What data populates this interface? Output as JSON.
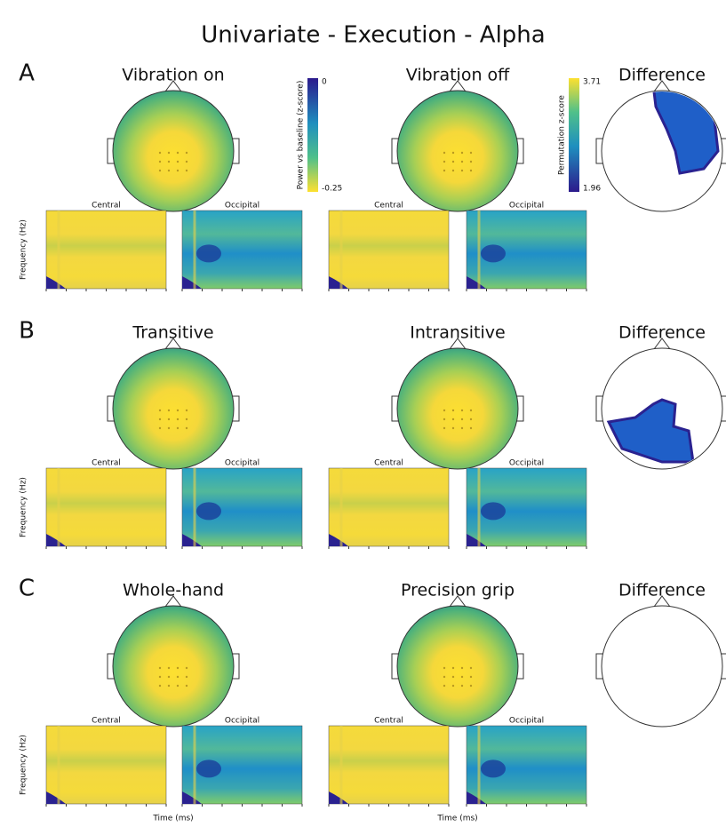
{
  "title": "Univariate - Execution - Alpha",
  "colorbars": [
    {
      "label": "Power vs baseline (z-score)",
      "ticks": [
        "0",
        "-0.25"
      ]
    },
    {
      "label": "Permutation z-score",
      "ticks": [
        "3.71",
        "1.96"
      ]
    }
  ],
  "panels": [
    {
      "letter": "A",
      "conditions": [
        "Vibration on",
        "Vibration off"
      ],
      "difference": "Difference"
    },
    {
      "letter": "B",
      "conditions": [
        "Transitive",
        "Intransitive"
      ],
      "difference": "Difference"
    },
    {
      "letter": "C",
      "conditions": [
        "Whole-hand",
        "Precision grip"
      ],
      "difference": "Difference"
    }
  ],
  "regions": [
    "Central",
    "Occipital"
  ],
  "y_axis_label": "Frequency (Hz)",
  "x_axis_label": "Time (ms)"
}
